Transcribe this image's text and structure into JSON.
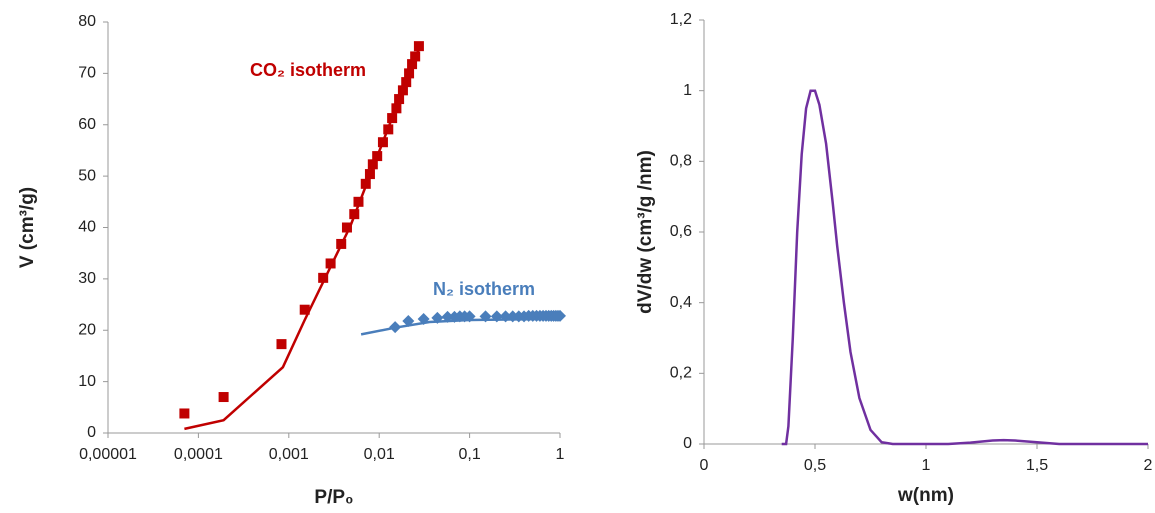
{
  "chart_data": [
    {
      "type": "scatter",
      "xscale": "log",
      "xlabel": "P/P₀",
      "ylabel": "V (cm³/g)",
      "xlim": [
        1e-05,
        1
      ],
      "ylim": [
        0,
        80
      ],
      "xticks": [
        {
          "value": 1e-05,
          "label": "0,00001"
        },
        {
          "value": 0.0001,
          "label": "0,0001"
        },
        {
          "value": 0.001,
          "label": "0,001"
        },
        {
          "value": 0.01,
          "label": "0,01"
        },
        {
          "value": 0.1,
          "label": "0,1"
        },
        1
      ],
      "yticks": [
        0,
        10,
        20,
        30,
        40,
        50,
        60,
        70,
        80
      ],
      "series": [
        {
          "name": "CO₂ isotherm",
          "mode": "markers",
          "marker": "square",
          "color": "#c00000",
          "x": [
            7e-05,
            0.00019,
            0.00083,
            0.0015,
            0.0024,
            0.0029,
            0.0038,
            0.0044,
            0.0053,
            0.0059,
            0.0071,
            0.0079,
            0.0085,
            0.0095,
            0.011,
            0.0126,
            0.0139,
            0.0155,
            0.0166,
            0.0183,
            0.0199,
            0.0214,
            0.0231,
            0.025,
            0.0275
          ],
          "values": [
            3.8,
            7,
            17.3,
            24,
            30.2,
            33,
            36.8,
            40,
            42.6,
            45,
            48.5,
            50.4,
            52.3,
            53.9,
            56.6,
            59.1,
            61.3,
            63.2,
            65,
            66.7,
            68.3,
            70,
            71.8,
            73.3,
            75.3
          ]
        },
        {
          "mode": "line",
          "color": "#c00000",
          "x": [
            7e-05,
            0.00019,
            0.00086,
            0.0015,
            0.0048,
            0.029
          ],
          "values": [
            0.8,
            2.5,
            12.8,
            22,
            40.3,
            75.9
          ]
        },
        {
          "name": "N₂ isotherm",
          "mode": "markers",
          "marker": "diamond",
          "color": "#4a7ebb",
          "x": [
            0.015,
            0.021,
            0.031,
            0.044,
            0.057,
            0.068,
            0.078,
            0.088,
            0.1,
            0.15,
            0.2,
            0.25,
            0.3,
            0.35,
            0.4,
            0.45,
            0.5,
            0.55,
            0.6,
            0.65,
            0.7,
            0.75,
            0.8,
            0.85,
            0.9,
            0.95,
            1.0
          ],
          "values": [
            20.6,
            21.8,
            22.2,
            22.4,
            22.6,
            22.6,
            22.7,
            22.7,
            22.7,
            22.7,
            22.7,
            22.7,
            22.7,
            22.7,
            22.7,
            22.8,
            22.8,
            22.8,
            22.8,
            22.8,
            22.8,
            22.8,
            22.8,
            22.8,
            22.8,
            22.8,
            22.8
          ]
        },
        {
          "mode": "line",
          "color": "#4a7ebb",
          "x": [
            0.0063,
            0.015,
            0.036,
            0.1,
            1
          ],
          "values": [
            19.2,
            20.5,
            21.6,
            22,
            22.2
          ]
        }
      ]
    },
    {
      "type": "line",
      "xlabel": "w(nm)",
      "ylabel": "dV/dw (cm³/g /nm)",
      "xlim": [
        0,
        2
      ],
      "ylim": [
        0,
        1.2
      ],
      "xticks": [
        0,
        {
          "value": 0.5,
          "label": "0,5"
        },
        1,
        {
          "value": 1.5,
          "label": "1,5"
        },
        2
      ],
      "yticks": [
        0,
        {
          "value": 0.2,
          "label": "0,2"
        },
        {
          "value": 0.4,
          "label": "0,4"
        },
        {
          "value": 0.6,
          "label": "0,6"
        },
        {
          "value": 0.8,
          "label": "0,8"
        },
        1,
        {
          "value": 1.2,
          "label": "1,2"
        }
      ],
      "series": [
        {
          "mode": "line",
          "color": "#7030a0",
          "x": [
            0.35,
            0.37,
            0.38,
            0.4,
            0.42,
            0.44,
            0.46,
            0.48,
            0.5,
            0.52,
            0.55,
            0.58,
            0.6,
            0.63,
            0.66,
            0.7,
            0.75,
            0.8,
            0.85,
            1,
            1.1,
            1.2,
            1.3,
            1.35,
            1.4,
            1.5,
            1.6,
            1.8,
            2
          ],
          "values": [
            0,
            0,
            0.05,
            0.3,
            0.6,
            0.82,
            0.95,
            1.0,
            1.0,
            0.96,
            0.85,
            0.68,
            0.56,
            0.4,
            0.26,
            0.13,
            0.04,
            0.005,
            0,
            0,
            0,
            0.004,
            0.01,
            0.011,
            0.01,
            0.005,
            0,
            0,
            0
          ]
        }
      ]
    }
  ]
}
